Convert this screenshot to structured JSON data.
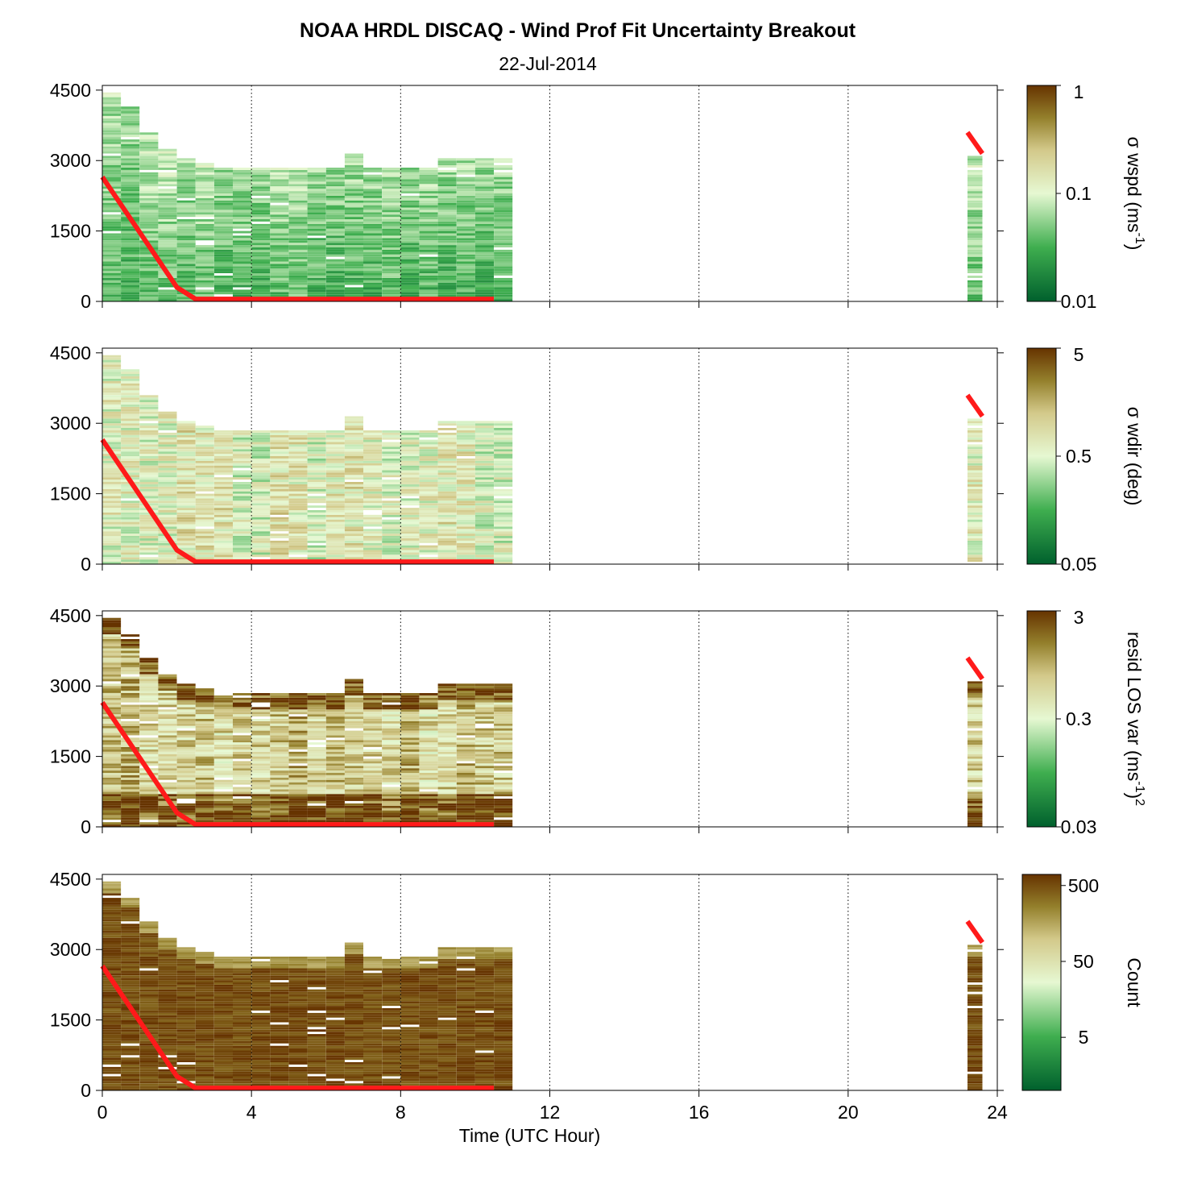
{
  "figure": {
    "title": "NOAA HRDL DISCAQ - Wind Prof Fit Uncertainty Breakout",
    "subtitle": "22-Jul-2014"
  },
  "colors": {
    "dark_green": "#00602d",
    "mid_green": "#3fae4f",
    "light_green": "#e6f8d2",
    "tan": "#d3c98a",
    "olive": "#94802c",
    "brown": "#663300",
    "red_line": "#ff1a1a",
    "grid": "#000000"
  },
  "chart_data": [
    {
      "type": "heatmap",
      "name": "panel-wspd",
      "xlabel": "",
      "ylabel": "",
      "xlim": [
        0,
        24
      ],
      "ylim": [
        0,
        4600
      ],
      "x_ticks": [
        "0",
        "4",
        "8",
        "12",
        "16",
        "20",
        "24"
      ],
      "y_ticks": [
        "0",
        "1500",
        "3000",
        "4500"
      ],
      "x_grid": true,
      "colorbar": {
        "label": "σ wspd (ms",
        "label_sup": "-1",
        "label_end": ")",
        "scale": "log",
        "ticks": [
          "0.01",
          "0.1",
          "1"
        ],
        "range": [
          0.01,
          1
        ]
      },
      "heatmap": {
        "data_hours": [
          [
            0,
            11
          ],
          [
            23.2,
            23.6
          ]
        ],
        "value_low_hint": 0.03,
        "value_high_hint": 0.15
      },
      "line": {
        "x": [
          0,
          2,
          2.5,
          10.5
        ],
        "y": [
          2650,
          300,
          50,
          50
        ]
      },
      "line_late": {
        "x": [
          23.2,
          23.6
        ],
        "y": [
          3600,
          3150
        ]
      }
    },
    {
      "type": "heatmap",
      "name": "panel-wdir",
      "xlabel": "",
      "ylabel": "",
      "xlim": [
        0,
        24
      ],
      "ylim": [
        0,
        4600
      ],
      "x_ticks": [
        "0",
        "4",
        "8",
        "12",
        "16",
        "20",
        "24"
      ],
      "y_ticks": [
        "0",
        "1500",
        "3000",
        "4500"
      ],
      "x_grid": true,
      "colorbar": {
        "label": "σ wdir (deg)",
        "label_sup": "",
        "label_end": "",
        "scale": "log",
        "ticks": [
          "0.05",
          "0.5",
          "5"
        ],
        "range": [
          0.05,
          5
        ]
      },
      "heatmap": {
        "data_hours": [
          [
            0,
            11
          ],
          [
            23.2,
            23.6
          ]
        ],
        "value_low_hint": 0.2,
        "value_high_hint": 2.0
      },
      "line": {
        "x": [
          0,
          2,
          2.5,
          10.5
        ],
        "y": [
          2650,
          300,
          50,
          50
        ]
      },
      "line_late": {
        "x": [
          23.2,
          23.6
        ],
        "y": [
          3600,
          3150
        ]
      }
    },
    {
      "type": "heatmap",
      "name": "panel-resid",
      "xlabel": "",
      "ylabel": "",
      "xlim": [
        0,
        24
      ],
      "ylim": [
        0,
        4600
      ],
      "x_ticks": [
        "0",
        "4",
        "8",
        "12",
        "16",
        "20",
        "24"
      ],
      "y_ticks": [
        "0",
        "1500",
        "3000",
        "4500"
      ],
      "x_grid": true,
      "colorbar": {
        "label": "resid LOS var (ms",
        "label_sup": "-1",
        "label_end": ")",
        "label_sup2": "2",
        "scale": "log",
        "ticks": [
          "0.03",
          "0.3",
          "3"
        ],
        "range": [
          0.03,
          3
        ]
      },
      "heatmap": {
        "data_hours": [
          [
            0,
            11
          ],
          [
            23.2,
            23.6
          ]
        ],
        "value_low_hint": 0.2,
        "value_high_hint": 2.5
      },
      "line": {
        "x": [
          0,
          2,
          2.5,
          10.5
        ],
        "y": [
          2650,
          300,
          50,
          50
        ]
      },
      "line_late": {
        "x": [
          23.2,
          23.6
        ],
        "y": [
          3600,
          3150
        ]
      }
    },
    {
      "type": "heatmap",
      "name": "panel-count",
      "xlabel": "Time (UTC Hour)",
      "ylabel": "",
      "xlim": [
        0,
        24
      ],
      "ylim": [
        0,
        4600
      ],
      "x_ticks": [
        "0",
        "4",
        "8",
        "12",
        "16",
        "20",
        "24"
      ],
      "y_ticks": [
        "0",
        "1500",
        "3000",
        "4500"
      ],
      "x_grid": true,
      "colorbar": {
        "label": "Count",
        "label_sup": "",
        "label_end": "",
        "scale": "log",
        "ticks": [
          "5",
          "50",
          "500"
        ],
        "range": [
          1,
          700
        ]
      },
      "heatmap": {
        "data_hours": [
          [
            0,
            11
          ],
          [
            23.2,
            23.6
          ]
        ],
        "value_low_hint": 150,
        "value_high_hint": 600
      },
      "line": {
        "x": [
          0,
          2,
          2.5,
          10.5
        ],
        "y": [
          2650,
          300,
          50,
          50
        ]
      },
      "line_late": {
        "x": [
          23.2,
          23.6
        ],
        "y": [
          3600,
          3150
        ]
      }
    }
  ]
}
